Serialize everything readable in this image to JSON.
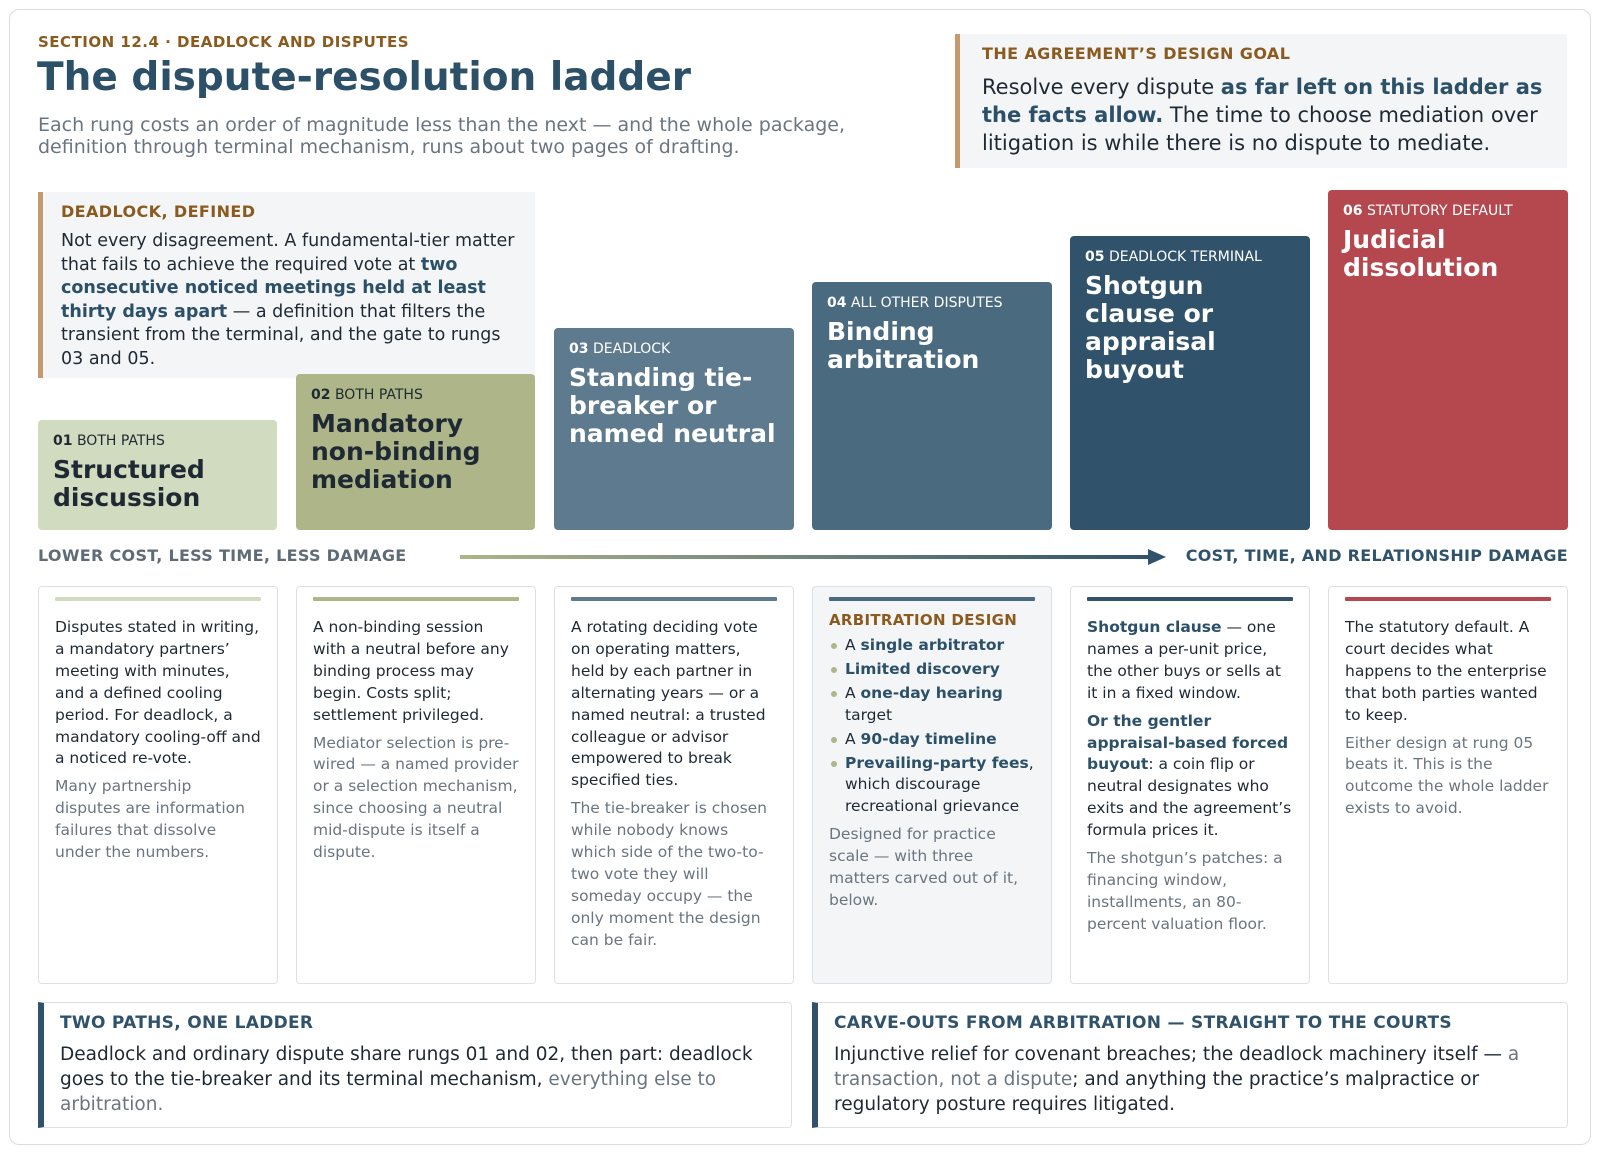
{
  "header": {
    "eyebrow": "SECTION 12.4  ·  DEADLOCK AND DISPUTES",
    "title": "The dispute-resolution ladder",
    "subtitle": "Each rung costs an order of magnitude less than the next — and the whole package, definition through terminal mechanism, runs about two pages of drafting."
  },
  "design_goal": {
    "label": "THE AGREEMENT’S DESIGN GOAL",
    "text_pre": "Resolve every dispute ",
    "text_bold": "as far left on this ladder as the facts allow.",
    "text_post": " The time to choose mediation over litigation is while there is no dispute to mediate."
  },
  "deadlock_defined": {
    "label": "DEADLOCK, DEFINED",
    "text_pre": "Not every disagreement. A fundamental-tier matter that fails to achieve the required vote at ",
    "text_bold": "two consecutive noticed meetings held at least thirty days apart",
    "text_post": " — a definition that filters the transient from the terminal, and the gate to rungs 03 and 05."
  },
  "rungs": [
    {
      "num": "01",
      "tag": "BOTH PATHS",
      "title": "Structured discussion",
      "color": "#d1dbbf"
    },
    {
      "num": "02",
      "tag": "BOTH PATHS",
      "title": "Mandatory non-binding mediation",
      "color": "#adb589"
    },
    {
      "num": "03",
      "tag": "DEADLOCK",
      "title": "Standing tie-breaker or named neutral",
      "color": "#5d7a8e"
    },
    {
      "num": "04",
      "tag": "ALL OTHER DISPUTES",
      "title": "Binding arbitration",
      "color": "#4a6a80"
    },
    {
      "num": "05",
      "tag": "DEADLOCK TERMINAL",
      "title": "Shotgun clause or appraisal buyout",
      "color": "#30536b"
    },
    {
      "num": "06",
      "tag": "STATUTORY DEFAULT",
      "title": "Judicial dissolution",
      "color": "#b5484e"
    }
  ],
  "axis": {
    "left_label": "LOWER COST, LESS TIME, LESS DAMAGE",
    "right_label": "COST, TIME, AND RELATIONSHIP DAMAGE"
  },
  "cards": {
    "c1": {
      "main": "Disputes stated in writing, a mandatory partners’ meeting with minutes, and a defined cooling period. For deadlock, a mandatory cooling-off and a noticed re-vote.",
      "note": "Many partnership disputes are information failures that dissolve under the numbers."
    },
    "c2": {
      "main": "A non-binding session with a neutral before any binding process may begin. Costs split; settlement privileged.",
      "note": "Mediator selection is pre-wired — a named provider or a selection mechanism, since choosing a neutral mid-dispute is itself a dispute."
    },
    "c3": {
      "main": "A rotating deciding vote on operating matters, held by each partner in alternating years — or a named neutral: a trusted colleague or advisor empowered to break specified ties.",
      "note": "The tie-breaker is chosen while nobody knows which side of the two-to-two vote they will someday occupy — the only moment the design can be fair."
    },
    "c4": {
      "label": "ARBITRATION DESIGN",
      "items": [
        {
          "pre": "A ",
          "bold": "single arbitrator",
          "post": ""
        },
        {
          "pre": "",
          "bold": "Limited discovery",
          "post": ""
        },
        {
          "pre": "A ",
          "bold": "one-day hearing",
          "post": " target"
        },
        {
          "pre": "A ",
          "bold": "90-day timeline",
          "post": ""
        },
        {
          "pre": "",
          "bold": "Prevailing-party fees",
          "post": ", which discourage recreational grievance"
        }
      ],
      "note": "Designed for practice scale — with three matters carved out of it, below."
    },
    "c5": {
      "p1_bold": "Shotgun clause",
      "p1_text": " — one names a per-unit price, the other buys or sells at it in a fixed window.",
      "p2_bold": "Or the gentler appraisal-based forced buyout",
      "p2_text": ": a coin flip or neutral designates who exits and the agreement’s formula prices it.",
      "note": "The shotgun’s patches: a financing window, installments, an 80-percent valuation floor."
    },
    "c6": {
      "main": "The statutory default. A court decides what happens to the enterprise that both parties wanted to keep.",
      "note": "Either design at rung 05 beats it. This is the outcome the whole ladder exists to avoid."
    }
  },
  "bottom": {
    "two_paths": {
      "label": "TWO PATHS, ONE LADDER",
      "text": "Deadlock and ordinary dispute share rungs 01 and 02, then part: deadlock goes to the tie-breaker and its terminal mechanism, ",
      "muted": "everything else to arbitration."
    },
    "carve_outs": {
      "label": "CARVE-OUTS FROM ARBITRATION — STRAIGHT TO THE COURTS",
      "text_pre": "Injunctive relief for covenant breaches; the deadlock machinery itself — ",
      "muted": "a transaction, not a dispute",
      "text_post": "; and anything the practice’s malpractice or regulatory posture requires litigated."
    }
  }
}
